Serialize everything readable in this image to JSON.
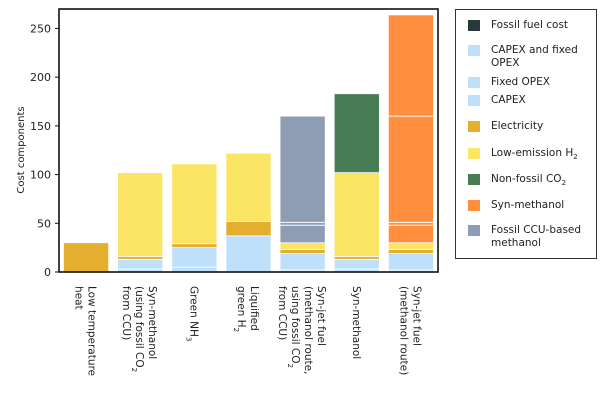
{
  "chart_data": {
    "type": "bar",
    "stacked": true,
    "ylabel": "Cost components",
    "ylim": [
      0,
      270
    ],
    "yticks": [
      0,
      50,
      100,
      150,
      200,
      250
    ],
    "grid": false,
    "legend_position": "right",
    "categories": [
      {
        "lines": [
          "Low temperature",
          "heat"
        ]
      },
      {
        "lines": [
          "Syn-methanol",
          "(using fossil CO2",
          "from CCU)"
        ]
      },
      {
        "lines": [
          "Green NH3"
        ]
      },
      {
        "lines": [
          "Liquified",
          "green H2"
        ]
      },
      {
        "lines": [
          "Syn-jet fuel",
          "(methanol route,",
          "using fossil CO2",
          "from CCU)"
        ]
      },
      {
        "lines": [
          "Syn-methanol"
        ]
      },
      {
        "lines": [
          "Syn-jet fuel",
          "(methanol route)"
        ]
      }
    ],
    "series": [
      {
        "name": "Fossil fuel cost",
        "color": "#27393a",
        "values": [
          0,
          0,
          0,
          0,
          0,
          0,
          0
        ]
      },
      {
        "name": "CAPEX and fixed OPEX",
        "color": "#bfe0fb",
        "values": [
          0,
          0,
          0,
          37,
          0,
          0,
          0
        ]
      },
      {
        "name": "Fixed OPEX",
        "color": "#bfe0fb",
        "values": [
          0,
          3,
          5,
          0,
          2,
          3,
          2
        ]
      },
      {
        "name": "CAPEX",
        "color": "#bfe0fb",
        "values": [
          0,
          10,
          20,
          0,
          17,
          10,
          17
        ]
      },
      {
        "name": "Electricity",
        "color": "#e4ae2f",
        "values": [
          30,
          3,
          4,
          15,
          4,
          3,
          4
        ]
      },
      {
        "name": "Low-emission H2",
        "color": "#fae564",
        "values": [
          0,
          86,
          82,
          70,
          7,
          86,
          7
        ]
      },
      {
        "name": "Non-fossil CO2",
        "color": "#477c55",
        "values": [
          0,
          0,
          0,
          0,
          0,
          81,
          0
        ]
      },
      {
        "name": "Syn-methanol",
        "color": "#ff8e3e",
        "values": [
          0,
          0,
          0,
          0,
          0,
          0,
          234
        ]
      },
      {
        "name": "Fossil CCU-based methanol",
        "color": "#8e9db3",
        "values": [
          0,
          0,
          0,
          0,
          130,
          0,
          0
        ]
      }
    ],
    "internal_lines": [
      [],
      [],
      [],
      [],
      [
        {
          "value": 48
        },
        {
          "value": 51
        }
      ],
      [],
      [
        {
          "value": 48
        },
        {
          "value": 51
        },
        {
          "value": 160
        }
      ]
    ]
  }
}
